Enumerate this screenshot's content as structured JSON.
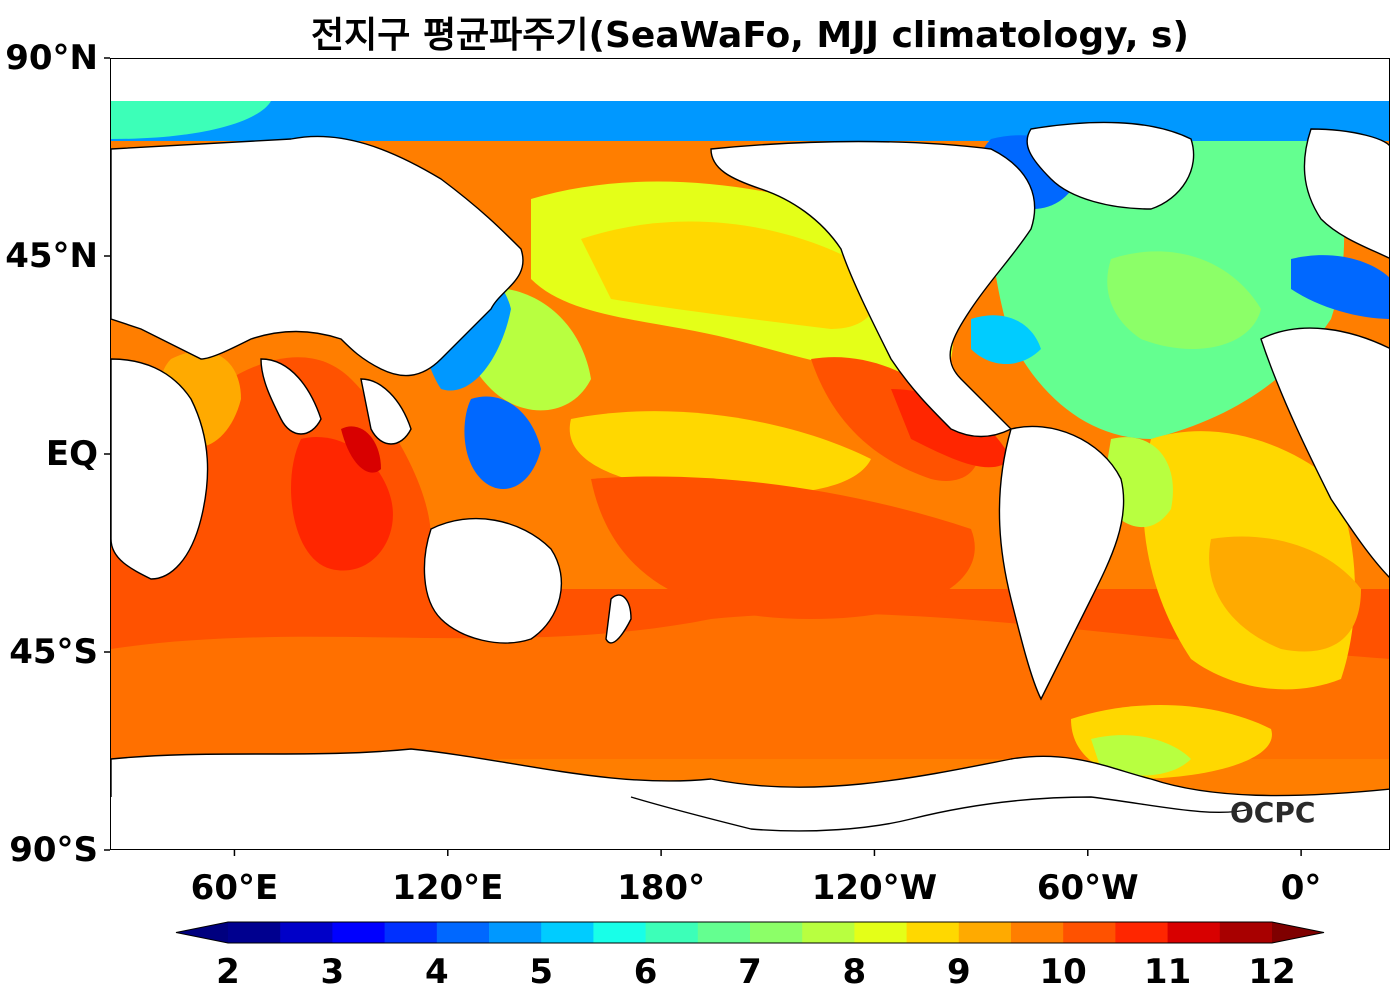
{
  "title": "전지구 평균파주기(SeaWaFo, MJJ climatology, s)",
  "logo": "OCPC",
  "y_axis": {
    "labels": [
      "90°N",
      "45°N",
      "EQ",
      "45°S",
      "90°S"
    ],
    "values": [
      90,
      45,
      0,
      -45,
      -90
    ]
  },
  "x_axis": {
    "labels": [
      "60°E",
      "120°E",
      "180°",
      "120°W",
      "60°W",
      "0°"
    ],
    "lon": [
      60,
      120,
      180,
      240,
      300,
      360
    ]
  },
  "map_extent": {
    "lon_min": 25,
    "lon_max": 385,
    "lat_min": -90,
    "lat_max": 90
  },
  "colorbar": {
    "labels": [
      "2",
      "3",
      "4",
      "5",
      "6",
      "7",
      "8",
      "9",
      "10",
      "11",
      "12"
    ],
    "min": 2,
    "max": 12,
    "step": 0.5,
    "extend": "both",
    "under_color": "#00007f",
    "over_color": "#7f0000",
    "colors": [
      "#00008f",
      "#0000c8",
      "#0000ff",
      "#0030ff",
      "#0068ff",
      "#0098ff",
      "#00ccff",
      "#18ffe8",
      "#3cffb8",
      "#64ff90",
      "#8cff68",
      "#b8ff40",
      "#e4ff18",
      "#ffd800",
      "#ffaa00",
      "#ff7e00",
      "#ff5200",
      "#ff2600",
      "#d80000",
      "#a80000"
    ]
  }
}
